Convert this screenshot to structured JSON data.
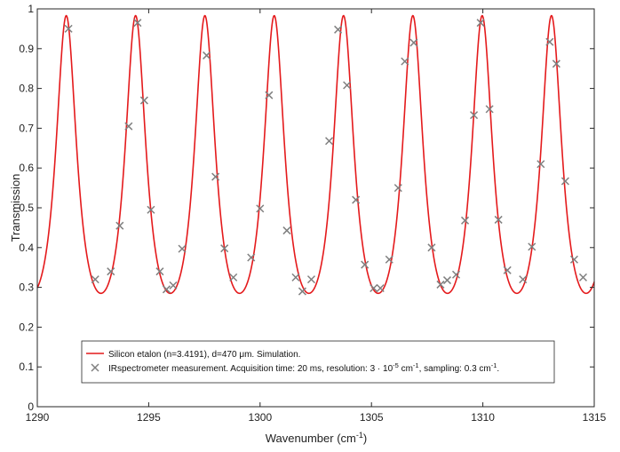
{
  "chart_data": {
    "type": "line",
    "xlabel": "Wavenumber",
    "xlabel_unit_base": "cm",
    "xlabel_unit_exp": "-1",
    "ylabel": "Transmission",
    "xlim": [
      1290,
      1315
    ],
    "ylim": [
      0,
      1
    ],
    "xticks": [
      "1290",
      "1295",
      "1300",
      "1305",
      "1310",
      "1315"
    ],
    "yticks": [
      "0",
      "0.1",
      "0.2",
      "0.3",
      "0.4",
      "0.5",
      "0.6",
      "0.7",
      "0.8",
      "0.9",
      "1"
    ],
    "grid": false,
    "legend_position": "bottom-left",
    "series": [
      {
        "kind": "line",
        "color": "#e41a1c",
        "legend": "Silicon etalon (n=3.4191), d=470 μm. Simulation.",
        "model": {
          "t_min": 0.285,
          "t_max": 0.983,
          "fsr": 3.1115,
          "peaks": [
            1291.3,
            1294.41,
            1297.52,
            1300.63,
            1303.74,
            1306.85,
            1309.96,
            1313.07
          ]
        }
      },
      {
        "kind": "scatter",
        "marker": "x",
        "color": "#7f7f7f",
        "legend_parts": {
          "prefix": "IRspectrometer measurement. Acquisition time: 20 ms, resolution: 3 · 10",
          "res_exp": "-5",
          "mid": " cm",
          "unit_exp": "-1",
          "suffix": ", sampling: 0.3 cm",
          "suffix_exp": "-1",
          "end": "."
        },
        "x": [
          1291.4,
          1292.6,
          1293.3,
          1293.7,
          1294.1,
          1294.5,
          1294.8,
          1295.1,
          1295.5,
          1295.8,
          1296.1,
          1296.5,
          1297.6,
          1298.0,
          1298.4,
          1298.8,
          1299.6,
          1300.0,
          1300.4,
          1301.2,
          1301.6,
          1301.9,
          1302.3,
          1303.1,
          1303.5,
          1303.9,
          1304.3,
          1304.7,
          1305.1,
          1305.4,
          1305.8,
          1306.2,
          1306.5,
          1306.9,
          1307.7,
          1308.1,
          1308.4,
          1308.8,
          1309.2,
          1309.6,
          1309.9,
          1310.3,
          1310.7,
          1311.1,
          1311.8,
          1312.2,
          1312.6,
          1313.0,
          1313.3,
          1313.7,
          1314.1,
          1314.5
        ],
        "y": [
          0.95,
          0.32,
          0.34,
          0.455,
          0.705,
          0.965,
          0.77,
          0.495,
          0.34,
          0.295,
          0.305,
          0.397,
          0.883,
          0.578,
          0.398,
          0.325,
          0.375,
          0.498,
          0.783,
          0.443,
          0.325,
          0.29,
          0.32,
          0.668,
          0.948,
          0.808,
          0.52,
          0.357,
          0.298,
          0.298,
          0.37,
          0.55,
          0.868,
          0.915,
          0.4,
          0.307,
          0.318,
          0.332,
          0.468,
          0.733,
          0.965,
          0.748,
          0.47,
          0.343,
          0.32,
          0.402,
          0.61,
          0.917,
          0.862,
          0.567,
          0.37,
          0.325
        ]
      }
    ]
  }
}
